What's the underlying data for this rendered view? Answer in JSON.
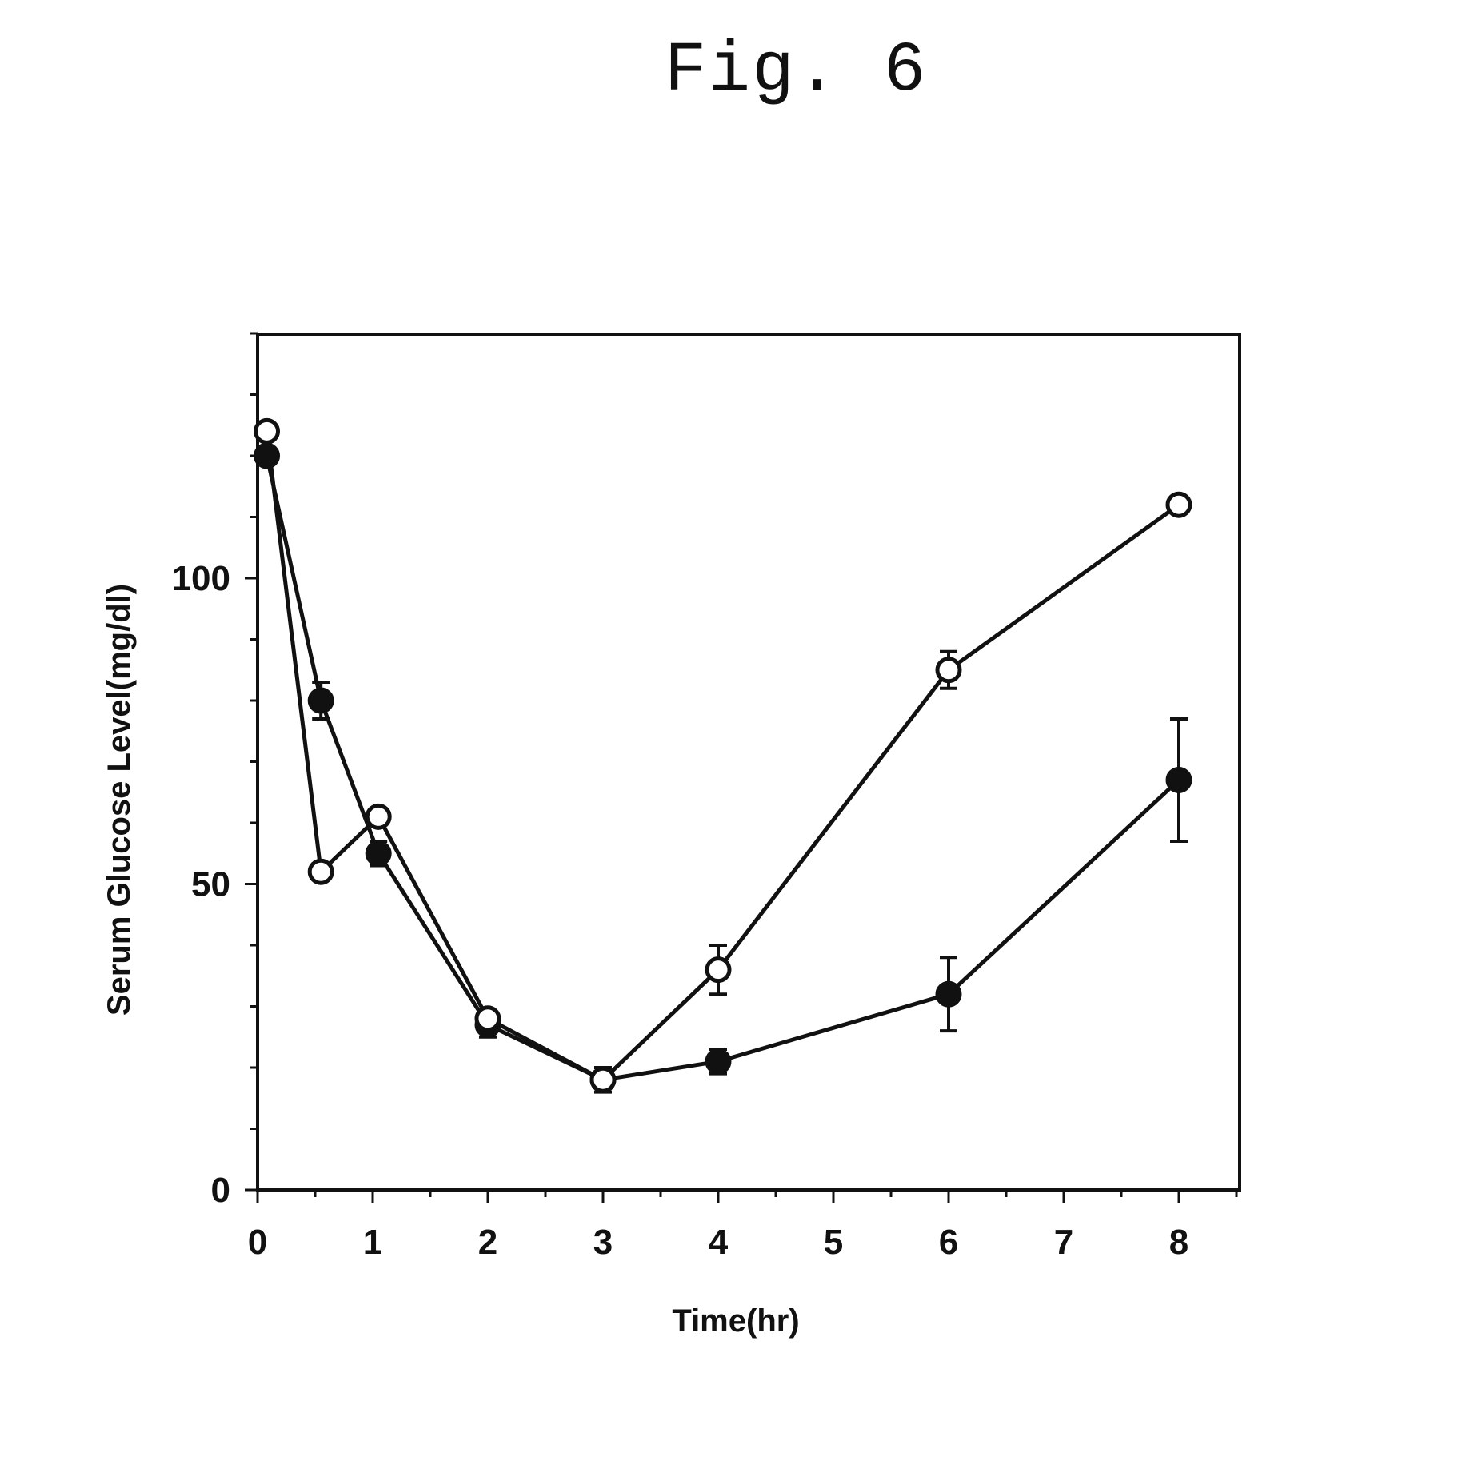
{
  "figure": {
    "title": "Fig. 6"
  },
  "chart_data": {
    "type": "line",
    "title": "",
    "xlabel": "Time(hr)",
    "ylabel": "Serum Glucose Level(mg/dl)",
    "xlim": [
      0,
      8.5
    ],
    "ylim": [
      0,
      140
    ],
    "x_ticks": [
      0,
      1,
      2,
      3,
      4,
      5,
      6,
      7,
      8
    ],
    "y_ticks": [
      0,
      50,
      100
    ],
    "grid": false,
    "legend": "none",
    "series": [
      {
        "marker": "filled-circle",
        "color": "#111111",
        "x": [
          0.08,
          0.55,
          1.05,
          2.0,
          3.0,
          4.0,
          6.0,
          8.0
        ],
        "y": [
          120,
          80,
          55,
          27,
          18,
          21,
          32,
          67
        ],
        "error": [
          0,
          3,
          2,
          2,
          2,
          2,
          6,
          10
        ]
      },
      {
        "marker": "open-circle",
        "color": "#111111",
        "x": [
          0.08,
          0.55,
          1.05,
          2.0,
          3.0,
          4.0,
          6.0,
          8.0
        ],
        "y": [
          124,
          52,
          61,
          28,
          18,
          36,
          85,
          112
        ],
        "error": [
          0,
          0,
          0,
          1,
          1,
          4,
          3,
          0
        ]
      }
    ]
  }
}
